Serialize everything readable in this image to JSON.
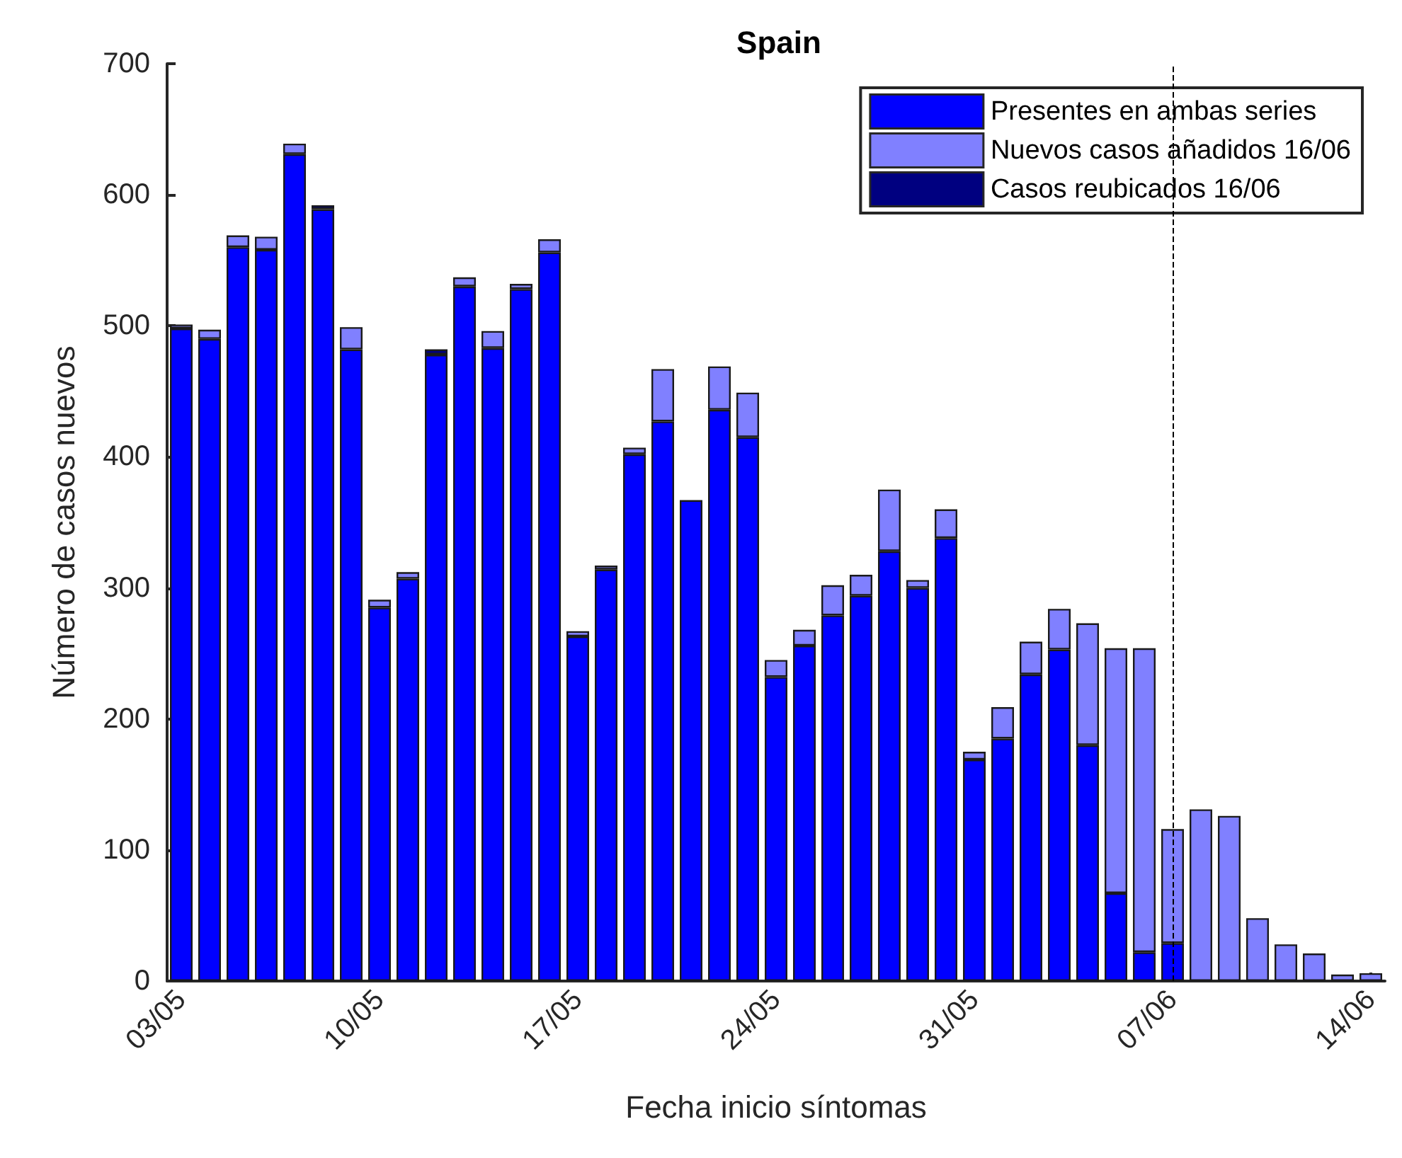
{
  "chart_data": {
    "type": "bar",
    "title": "Spain",
    "xlabel": "Fecha inicio síntomas",
    "ylabel": "Número de casos nuevos",
    "categories": [
      "03/05",
      null,
      null,
      null,
      null,
      null,
      null,
      "10/05",
      null,
      null,
      null,
      null,
      null,
      null,
      "17/05",
      null,
      null,
      null,
      null,
      null,
      null,
      "24/05",
      null,
      null,
      null,
      null,
      null,
      null,
      "31/05",
      null,
      null,
      null,
      null,
      null,
      null,
      "07/06",
      null,
      null,
      null,
      null,
      null,
      null,
      "14/06"
    ],
    "stacked": true,
    "series": [
      {
        "name": "Presentes en ambas series",
        "color": "#0000ff",
        "values": [
          498,
          490,
          560,
          558,
          631,
          589,
          482,
          285,
          307,
          478,
          530,
          483,
          528,
          556,
          263,
          314,
          402,
          427,
          367,
          436,
          415,
          232,
          256,
          279,
          294,
          328,
          300,
          338,
          169,
          185,
          234,
          253,
          180,
          67,
          22,
          29,
          null,
          null,
          null,
          null,
          null,
          null,
          null
        ]
      },
      {
        "name": "Nuevos casos añadidos 16/06",
        "color": "#8080ff",
        "values": [
          3,
          7,
          9,
          10,
          8,
          null,
          17,
          6,
          5,
          null,
          7,
          13,
          4,
          10,
          4,
          3,
          5,
          40,
          null,
          33,
          34,
          13,
          12,
          23,
          16,
          47,
          6,
          22,
          6,
          24,
          25,
          31,
          93,
          187,
          232,
          87,
          131,
          126,
          48,
          28,
          21,
          5,
          6
        ]
      },
      {
        "name": "Casos reubicados 16/06",
        "color": "#000080",
        "values": [
          null,
          null,
          null,
          null,
          null,
          3,
          null,
          null,
          null,
          4,
          null,
          null,
          null,
          null,
          null,
          null,
          null,
          null,
          null,
          null,
          null,
          null,
          null,
          null,
          null,
          null,
          null,
          null,
          null,
          null,
          null,
          null,
          null,
          null,
          null,
          null,
          null,
          null,
          null,
          null,
          null,
          null,
          null
        ]
      }
    ],
    "ylim": [
      0,
      700
    ],
    "yticks": [
      0,
      100,
      200,
      300,
      400,
      500,
      600,
      700
    ],
    "grid": false,
    "legend": "top right",
    "ref_lines": [
      {
        "axis": "x",
        "value": "07/06",
        "color": "#000000",
        "line_style": "dashed"
      }
    ]
  }
}
